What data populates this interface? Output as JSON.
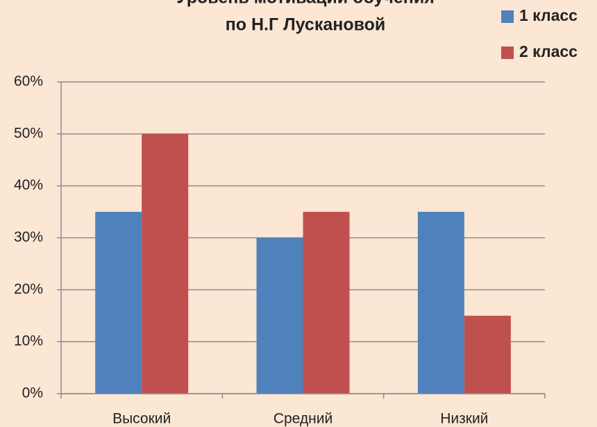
{
  "chart_data": {
    "type": "bar",
    "title": [
      "Уровень мотивации обучения",
      "по Н.Г Лускановой"
    ],
    "categories": [
      "Высокий",
      "Средний",
      "Низкий"
    ],
    "series": [
      {
        "name": "1 класс",
        "color": "#4f81bd",
        "values": [
          35,
          30,
          35
        ]
      },
      {
        "name": "2 класс",
        "color": "#c0504d",
        "values": [
          50,
          35,
          15
        ]
      }
    ],
    "ylim": [
      0,
      60
    ],
    "yticks": [
      {
        "value": 0,
        "label": "0%"
      },
      {
        "value": 10,
        "label": "10%"
      },
      {
        "value": 20,
        "label": "20%"
      },
      {
        "value": 30,
        "label": "30%"
      },
      {
        "value": 40,
        "label": "40%"
      },
      {
        "value": 50,
        "label": "50%"
      },
      {
        "value": 60,
        "label": "60%"
      }
    ],
    "grid": true,
    "legend": "top-right"
  }
}
